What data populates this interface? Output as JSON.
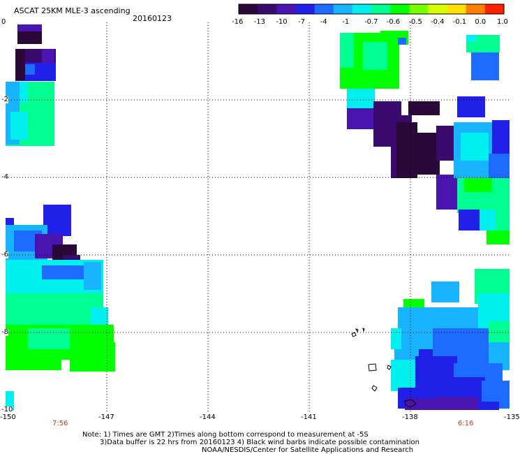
{
  "header": {
    "title": "ASCAT 25KM MLE-3 ascending",
    "date": "20160123"
  },
  "colorbar": {
    "colors": [
      "#2a0838",
      "#3a0a6e",
      "#4a14b0",
      "#2020e8",
      "#1e6cff",
      "#18b4ff",
      "#00f0f0",
      "#00ff90",
      "#00ff00",
      "#78ff00",
      "#d8ff00",
      "#ffe000",
      "#ff8000",
      "#ff2000"
    ],
    "tick_labels": [
      "-16",
      "-13",
      "-10",
      "-7",
      "-4",
      "-1",
      "-0.7",
      "-0.6",
      "-0.5",
      "-0.4",
      "-0.1",
      "0.0",
      "1.0"
    ]
  },
  "map": {
    "x_ticks": [
      "-150",
      "-147",
      "-144",
      "-141",
      "-138",
      "-135"
    ],
    "y_ticks": [
      "0",
      "-2",
      "-4",
      "-6",
      "-8",
      "-10"
    ],
    "times": {
      "left": "7:56",
      "right": "6:16"
    },
    "time_color": "#c83c14"
  },
  "footer": {
    "line1": "Note: 1) Times are GMT 2)Times along bottom correspond to measurement at -5S",
    "line2": "3)Data buffer is 22 hrs from 20160123 4) Black wind barbs indicate possible contamination",
    "line3": "NOAA/NESDIS/Center for Satellite Applications and Research"
  }
}
